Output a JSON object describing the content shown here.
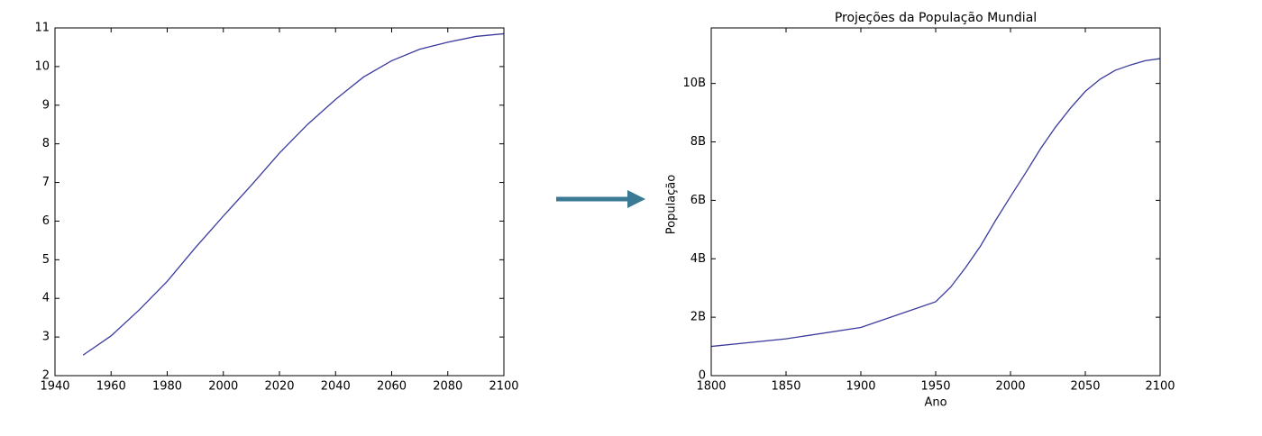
{
  "chart_data": [
    {
      "type": "line",
      "x": [
        1950,
        1960,
        1970,
        1980,
        1990,
        2000,
        2010,
        2020,
        2030,
        2040,
        2050,
        2060,
        2070,
        2080,
        2090,
        2100
      ],
      "values": [
        2.53,
        3.03,
        3.7,
        4.44,
        5.31,
        6.13,
        6.93,
        7.76,
        8.5,
        9.15,
        9.73,
        10.15,
        10.45,
        10.63,
        10.78,
        10.85
      ],
      "color": "#3a3a9e",
      "xlim": [
        1940,
        2100
      ],
      "xticks": [
        1940,
        1960,
        1980,
        2000,
        2020,
        2040,
        2060,
        2080,
        2100
      ],
      "ylim": [
        2,
        11
      ],
      "yticks": [
        2,
        3,
        4,
        5,
        6,
        7,
        8,
        9,
        10,
        11
      ]
    },
    {
      "type": "line",
      "title": "Projeções da População Mundial",
      "x_label": "Ano",
      "y_label": "População",
      "x": [
        1800,
        1850,
        1900,
        1950,
        1960,
        1970,
        1980,
        1990,
        2000,
        2010,
        2020,
        2030,
        2040,
        2050,
        2060,
        2070,
        2080,
        2090,
        2100
      ],
      "values": [
        1000000000,
        1260000000,
        1650000000,
        2530000000,
        3030000000,
        3700000000,
        4440000000,
        5310000000,
        6130000000,
        6930000000,
        7760000000,
        8500000000,
        9150000000,
        9730000000,
        10150000000,
        10450000000,
        10630000000,
        10780000000,
        10850000000
      ],
      "color": "#3a3a9e",
      "xlim": [
        1800,
        2100
      ],
      "xticks": [
        1800,
        1850,
        1900,
        1950,
        2000,
        2050,
        2100
      ],
      "ylim": [
        0,
        11900000000
      ],
      "yticks": [
        0,
        {
          "value": 2000000000,
          "label": "2B"
        },
        {
          "value": 4000000000,
          "label": "4B"
        },
        {
          "value": 6000000000,
          "label": "6B"
        },
        {
          "value": 8000000000,
          "label": "8B"
        },
        {
          "value": 10000000000,
          "label": "10B"
        }
      ]
    }
  ]
}
